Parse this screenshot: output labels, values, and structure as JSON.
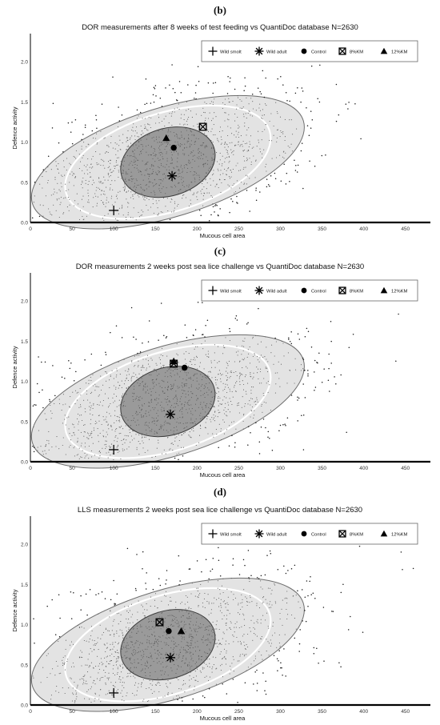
{
  "legend_entries": [
    {
      "label": "Wild smolt",
      "marker": "plus"
    },
    {
      "label": "Wild adult",
      "marker": "asterisk"
    },
    {
      "label": "Control",
      "marker": "circle"
    },
    {
      "label": "8%KM",
      "marker": "boxed-x"
    },
    {
      "label": "12%KM",
      "marker": "triangle"
    }
  ],
  "colors": {
    "outer_ellipse": "#e3e3e3",
    "inner_ellipse": "#9a9a9a",
    "mid_ring": "#ffffff",
    "points": "#1a1a1a",
    "axis": "#000000"
  },
  "chart_data": [
    {
      "type": "scatter",
      "panel_label": "(b)",
      "title": "DOR measurements after 8 weeks of test feeding vs QuantiDoc database N=2630",
      "xlabel": "Mucous cell area",
      "ylabel": "Defence activity",
      "xlim": [
        0,
        480
      ],
      "ylim": [
        0,
        2.35
      ],
      "x_ticks": [
        "0",
        "50",
        "100",
        "150",
        "200",
        "250",
        "300",
        "350",
        "400",
        "450"
      ],
      "y_ticks": [
        "0.0",
        "0.5",
        "1.0",
        "1.5",
        "2.0"
      ],
      "legend_position": "top-right",
      "reference_ellipses": {
        "center": [
          165,
          0.75
        ],
        "angle_deg": 17,
        "outer_semi_axes": [
          170,
          0.68
        ],
        "inner_semi_axes": [
          58,
          0.42
        ]
      },
      "groups": [
        {
          "name": "Wild smolt",
          "x": 100,
          "y": 0.15
        },
        {
          "name": "Wild adult",
          "x": 170,
          "y": 0.58
        },
        {
          "name": "Control",
          "x": 172,
          "y": 0.93
        },
        {
          "name": "8%KM",
          "x": 207,
          "y": 1.19
        },
        {
          "name": "12%KM",
          "x": 163,
          "y": 1.05
        }
      ]
    },
    {
      "type": "scatter",
      "panel_label": "(c)",
      "title": "DOR measurements 2 weeks post sea lice challenge vs QuantiDoc database N=2630",
      "xlabel": "Mucous cell area",
      "ylabel": "Defence activity",
      "xlim": [
        0,
        480
      ],
      "ylim": [
        0,
        2.35
      ],
      "x_ticks": [
        "0",
        "50",
        "100",
        "150",
        "200",
        "250",
        "300",
        "350",
        "400",
        "450"
      ],
      "y_ticks": [
        "0.0",
        "0.5",
        "1.0",
        "1.5",
        "2.0"
      ],
      "legend_position": "top-right",
      "reference_ellipses": {
        "center": [
          165,
          0.75
        ],
        "angle_deg": 17,
        "outer_semi_axes": [
          170,
          0.68
        ],
        "inner_semi_axes": [
          58,
          0.42
        ]
      },
      "groups": [
        {
          "name": "Wild smolt",
          "x": 100,
          "y": 0.15
        },
        {
          "name": "Wild adult",
          "x": 168,
          "y": 0.59
        },
        {
          "name": "Control",
          "x": 185,
          "y": 1.17
        },
        {
          "name": "8%KM",
          "x": 172,
          "y": 1.22
        },
        {
          "name": "12%KM",
          "x": 172,
          "y": 1.25
        }
      ]
    },
    {
      "type": "scatter",
      "panel_label": "(d)",
      "title": "LLS measurements 2 weeks post sea lice challenge vs QuantiDoc database N=2630",
      "xlabel": "Mucous cell area",
      "ylabel": "Defence activity",
      "xlim": [
        0,
        480
      ],
      "ylim": [
        0,
        2.35
      ],
      "x_ticks": [
        "0",
        "50",
        "100",
        "150",
        "200",
        "250",
        "300",
        "350",
        "400",
        "450"
      ],
      "y_ticks": [
        "0.0",
        "0.5",
        "1.0",
        "1.5",
        "2.0"
      ],
      "legend_position": "top-right",
      "reference_ellipses": {
        "center": [
          165,
          0.75
        ],
        "angle_deg": 17,
        "outer_semi_axes": [
          170,
          0.68
        ],
        "inner_semi_axes": [
          58,
          0.42
        ]
      },
      "groups": [
        {
          "name": "Wild smolt",
          "x": 100,
          "y": 0.15
        },
        {
          "name": "Wild adult",
          "x": 168,
          "y": 0.59
        },
        {
          "name": "Control",
          "x": 166,
          "y": 0.92
        },
        {
          "name": "8%KM",
          "x": 155,
          "y": 1.03
        },
        {
          "name": "12%KM",
          "x": 181,
          "y": 0.92
        }
      ]
    }
  ]
}
